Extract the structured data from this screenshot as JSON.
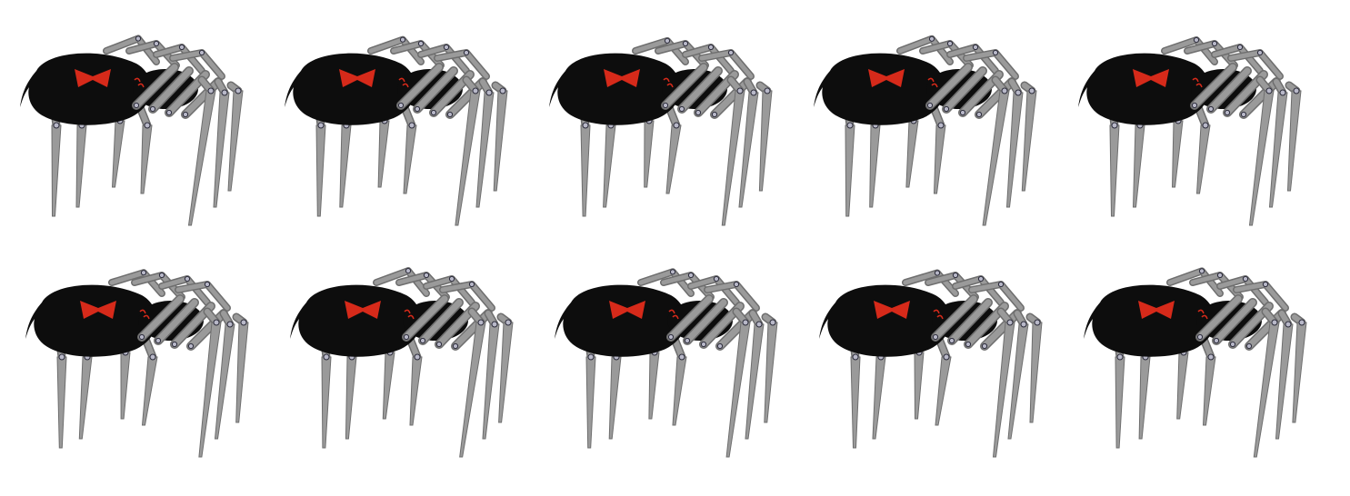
{
  "sprite_sheet": {
    "columns": 5,
    "rows": 2,
    "frame_count": 10,
    "colors": {
      "background": "#ffffff",
      "body": "#0d0d0d",
      "marking": "#d62a1a",
      "leg": "#9a9a9a",
      "leg_outline": "#6e6e6e",
      "joint": "#b8b8c8"
    },
    "frames": [
      {
        "index": 1,
        "pose": "walk-a"
      },
      {
        "index": 2,
        "pose": "walk-b"
      },
      {
        "index": 3,
        "pose": "walk-c"
      },
      {
        "index": 4,
        "pose": "walk-d"
      },
      {
        "index": 5,
        "pose": "walk-e"
      },
      {
        "index": 6,
        "pose": "walk-f"
      },
      {
        "index": 7,
        "pose": "walk-g"
      },
      {
        "index": 8,
        "pose": "walk-h"
      },
      {
        "index": 9,
        "pose": "walk-i"
      },
      {
        "index": 10,
        "pose": "walk-j"
      }
    ]
  }
}
